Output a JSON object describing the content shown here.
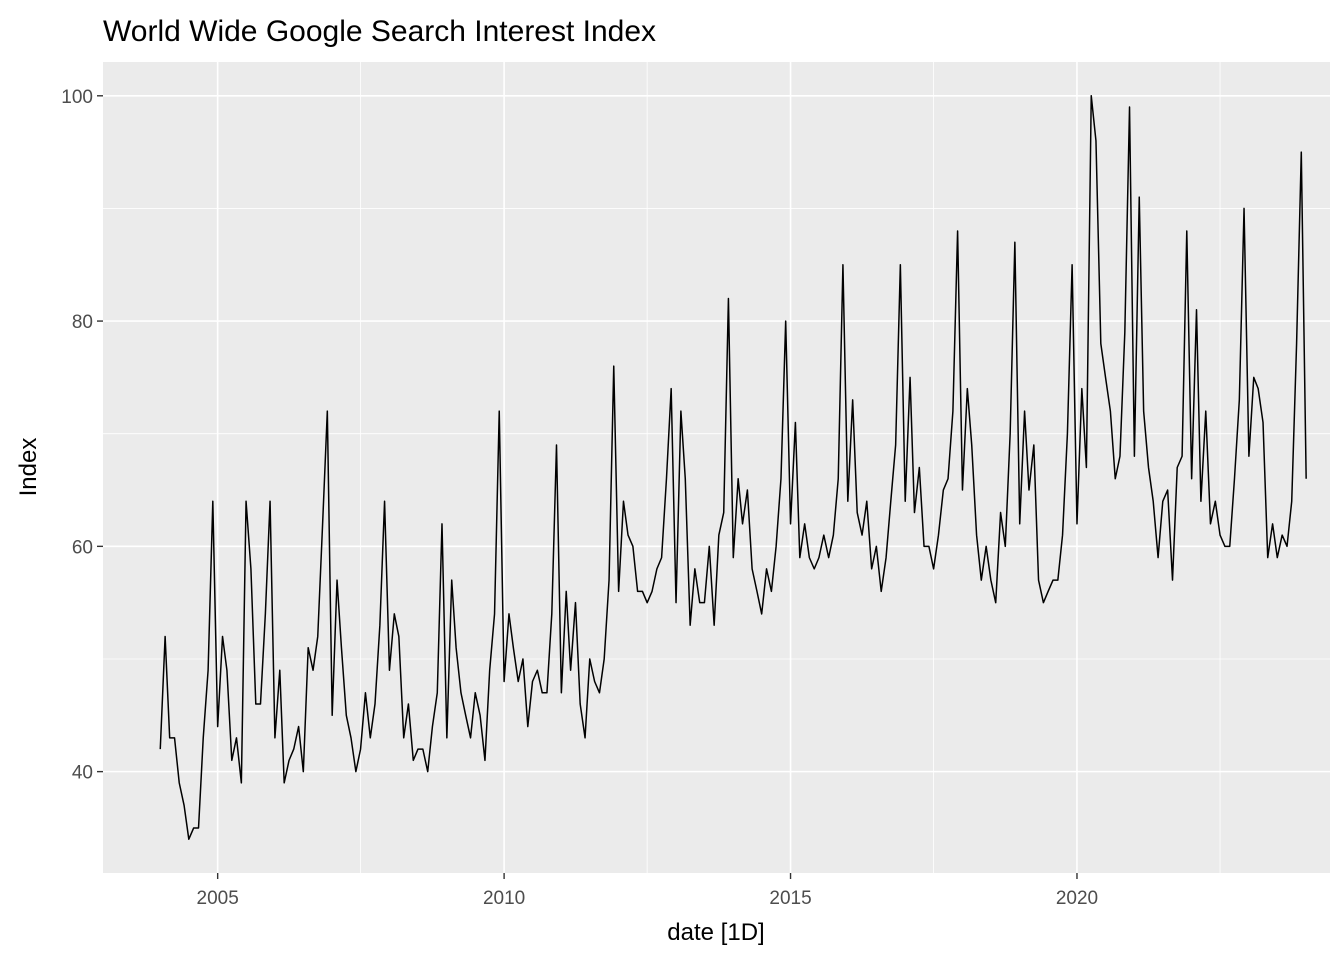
{
  "chart_data": {
    "type": "line",
    "title": "World Wide Google Search Interest Index",
    "xlabel": "date [1D]",
    "ylabel": "Index",
    "xlim": [
      "2003-01-01",
      "2024-06-01"
    ],
    "ylim": [
      31,
      103
    ],
    "x_ticks": [
      {
        "value": "2005-01-01",
        "label": "2005"
      },
      {
        "value": "2010-01-01",
        "label": "2010"
      },
      {
        "value": "2015-01-01",
        "label": "2015"
      },
      {
        "value": "2020-01-01",
        "label": "2020"
      }
    ],
    "x_minor_ticks": [
      "2007-07-01",
      "2012-07-01",
      "2017-07-01",
      "2022-07-01"
    ],
    "y_ticks": [
      40,
      60,
      80,
      100
    ],
    "y_minor_ticks": [
      50,
      70,
      90
    ],
    "grid": true,
    "background": "#ebebeb",
    "line_color": "#000000",
    "series": [
      {
        "points": [
          [
            "2004-01-01",
            42
          ],
          [
            "2004-02-01",
            52
          ],
          [
            "2004-03-01",
            43
          ],
          [
            "2004-04-01",
            43
          ],
          [
            "2004-05-01",
            39
          ],
          [
            "2004-06-01",
            37
          ],
          [
            "2004-07-01",
            34
          ],
          [
            "2004-08-01",
            35
          ],
          [
            "2004-09-01",
            35
          ],
          [
            "2004-10-01",
            43
          ],
          [
            "2004-11-01",
            49
          ],
          [
            "2004-12-01",
            64
          ],
          [
            "2005-01-01",
            44
          ],
          [
            "2005-02-01",
            52
          ],
          [
            "2005-03-01",
            49
          ],
          [
            "2005-04-01",
            41
          ],
          [
            "2005-05-01",
            43
          ],
          [
            "2005-06-01",
            39
          ],
          [
            "2005-07-01",
            64
          ],
          [
            "2005-08-01",
            58
          ],
          [
            "2005-09-01",
            46
          ],
          [
            "2005-10-01",
            46
          ],
          [
            "2005-11-01",
            54
          ],
          [
            "2005-12-01",
            64
          ],
          [
            "2006-01-01",
            43
          ],
          [
            "2006-02-01",
            49
          ],
          [
            "2006-03-01",
            39
          ],
          [
            "2006-04-01",
            41
          ],
          [
            "2006-05-01",
            42
          ],
          [
            "2006-06-01",
            44
          ],
          [
            "2006-07-01",
            40
          ],
          [
            "2006-08-01",
            51
          ],
          [
            "2006-09-01",
            49
          ],
          [
            "2006-10-01",
            52
          ],
          [
            "2006-11-01",
            62
          ],
          [
            "2006-12-01",
            72
          ],
          [
            "2007-01-01",
            45
          ],
          [
            "2007-02-01",
            57
          ],
          [
            "2007-03-01",
            51
          ],
          [
            "2007-04-01",
            45
          ],
          [
            "2007-05-01",
            43
          ],
          [
            "2007-06-01",
            40
          ],
          [
            "2007-07-01",
            42
          ],
          [
            "2007-08-01",
            47
          ],
          [
            "2007-09-01",
            43
          ],
          [
            "2007-10-01",
            46
          ],
          [
            "2007-11-01",
            53
          ],
          [
            "2007-12-01",
            64
          ],
          [
            "2008-01-01",
            49
          ],
          [
            "2008-02-01",
            54
          ],
          [
            "2008-03-01",
            52
          ],
          [
            "2008-04-01",
            43
          ],
          [
            "2008-05-01",
            46
          ],
          [
            "2008-06-01",
            41
          ],
          [
            "2008-07-01",
            42
          ],
          [
            "2008-08-01",
            42
          ],
          [
            "2008-09-01",
            40
          ],
          [
            "2008-10-01",
            44
          ],
          [
            "2008-11-01",
            47
          ],
          [
            "2008-12-01",
            62
          ],
          [
            "2009-01-01",
            43
          ],
          [
            "2009-02-01",
            57
          ],
          [
            "2009-03-01",
            51
          ],
          [
            "2009-04-01",
            47
          ],
          [
            "2009-05-01",
            45
          ],
          [
            "2009-06-01",
            43
          ],
          [
            "2009-07-01",
            47
          ],
          [
            "2009-08-01",
            45
          ],
          [
            "2009-09-01",
            41
          ],
          [
            "2009-10-01",
            49
          ],
          [
            "2009-11-01",
            54
          ],
          [
            "2009-12-01",
            72
          ],
          [
            "2010-01-01",
            48
          ],
          [
            "2010-02-01",
            54
          ],
          [
            "2010-03-01",
            51
          ],
          [
            "2010-04-01",
            48
          ],
          [
            "2010-05-01",
            50
          ],
          [
            "2010-06-01",
            44
          ],
          [
            "2010-07-01",
            48
          ],
          [
            "2010-08-01",
            49
          ],
          [
            "2010-09-01",
            47
          ],
          [
            "2010-10-01",
            47
          ],
          [
            "2010-11-01",
            54
          ],
          [
            "2010-12-01",
            69
          ],
          [
            "2011-01-01",
            47
          ],
          [
            "2011-02-01",
            56
          ],
          [
            "2011-03-01",
            49
          ],
          [
            "2011-04-01",
            55
          ],
          [
            "2011-05-01",
            46
          ],
          [
            "2011-06-01",
            43
          ],
          [
            "2011-07-01",
            50
          ],
          [
            "2011-08-01",
            48
          ],
          [
            "2011-09-01",
            47
          ],
          [
            "2011-10-01",
            50
          ],
          [
            "2011-11-01",
            57
          ],
          [
            "2011-12-01",
            76
          ],
          [
            "2012-01-01",
            56
          ],
          [
            "2012-02-01",
            64
          ],
          [
            "2012-03-01",
            61
          ],
          [
            "2012-04-01",
            60
          ],
          [
            "2012-05-01",
            56
          ],
          [
            "2012-06-01",
            56
          ],
          [
            "2012-07-01",
            55
          ],
          [
            "2012-08-01",
            56
          ],
          [
            "2012-09-01",
            58
          ],
          [
            "2012-10-01",
            59
          ],
          [
            "2012-11-01",
            66
          ],
          [
            "2012-12-01",
            74
          ],
          [
            "2013-01-01",
            55
          ],
          [
            "2013-02-01",
            72
          ],
          [
            "2013-03-01",
            66
          ],
          [
            "2013-04-01",
            53
          ],
          [
            "2013-05-01",
            58
          ],
          [
            "2013-06-01",
            55
          ],
          [
            "2013-07-01",
            55
          ],
          [
            "2013-08-01",
            60
          ],
          [
            "2013-09-01",
            53
          ],
          [
            "2013-10-01",
            61
          ],
          [
            "2013-11-01",
            63
          ],
          [
            "2013-12-01",
            82
          ],
          [
            "2014-01-01",
            59
          ],
          [
            "2014-02-01",
            66
          ],
          [
            "2014-03-01",
            62
          ],
          [
            "2014-04-01",
            65
          ],
          [
            "2014-05-01",
            58
          ],
          [
            "2014-06-01",
            56
          ],
          [
            "2014-07-01",
            54
          ],
          [
            "2014-08-01",
            58
          ],
          [
            "2014-09-01",
            56
          ],
          [
            "2014-10-01",
            60
          ],
          [
            "2014-11-01",
            66
          ],
          [
            "2014-12-01",
            80
          ],
          [
            "2015-01-01",
            62
          ],
          [
            "2015-02-01",
            71
          ],
          [
            "2015-03-01",
            59
          ],
          [
            "2015-04-01",
            62
          ],
          [
            "2015-05-01",
            59
          ],
          [
            "2015-06-01",
            58
          ],
          [
            "2015-07-01",
            59
          ],
          [
            "2015-08-01",
            61
          ],
          [
            "2015-09-01",
            59
          ],
          [
            "2015-10-01",
            61
          ],
          [
            "2015-11-01",
            66
          ],
          [
            "2015-12-01",
            85
          ],
          [
            "2016-01-01",
            64
          ],
          [
            "2016-02-01",
            73
          ],
          [
            "2016-03-01",
            63
          ],
          [
            "2016-04-01",
            61
          ],
          [
            "2016-05-01",
            64
          ],
          [
            "2016-06-01",
            58
          ],
          [
            "2016-07-01",
            60
          ],
          [
            "2016-08-01",
            56
          ],
          [
            "2016-09-01",
            59
          ],
          [
            "2016-10-01",
            64
          ],
          [
            "2016-11-01",
            69
          ],
          [
            "2016-12-01",
            85
          ],
          [
            "2017-01-01",
            64
          ],
          [
            "2017-02-01",
            75
          ],
          [
            "2017-03-01",
            63
          ],
          [
            "2017-04-01",
            67
          ],
          [
            "2017-05-01",
            60
          ],
          [
            "2017-06-01",
            60
          ],
          [
            "2017-07-01",
            58
          ],
          [
            "2017-08-01",
            61
          ],
          [
            "2017-09-01",
            65
          ],
          [
            "2017-10-01",
            66
          ],
          [
            "2017-11-01",
            72
          ],
          [
            "2017-12-01",
            88
          ],
          [
            "2018-01-01",
            65
          ],
          [
            "2018-02-01",
            74
          ],
          [
            "2018-03-01",
            69
          ],
          [
            "2018-04-01",
            61
          ],
          [
            "2018-05-01",
            57
          ],
          [
            "2018-06-01",
            60
          ],
          [
            "2018-07-01",
            57
          ],
          [
            "2018-08-01",
            55
          ],
          [
            "2018-09-01",
            63
          ],
          [
            "2018-10-01",
            60
          ],
          [
            "2018-11-01",
            70
          ],
          [
            "2018-12-01",
            87
          ],
          [
            "2019-01-01",
            62
          ],
          [
            "2019-02-01",
            72
          ],
          [
            "2019-03-01",
            65
          ],
          [
            "2019-04-01",
            69
          ],
          [
            "2019-05-01",
            57
          ],
          [
            "2019-06-01",
            55
          ],
          [
            "2019-07-01",
            56
          ],
          [
            "2019-08-01",
            57
          ],
          [
            "2019-09-01",
            57
          ],
          [
            "2019-10-01",
            61
          ],
          [
            "2019-11-01",
            70
          ],
          [
            "2019-12-01",
            85
          ],
          [
            "2020-01-01",
            62
          ],
          [
            "2020-02-01",
            74
          ],
          [
            "2020-03-01",
            67
          ],
          [
            "2020-04-01",
            100
          ],
          [
            "2020-05-01",
            96
          ],
          [
            "2020-06-01",
            78
          ],
          [
            "2020-07-01",
            75
          ],
          [
            "2020-08-01",
            72
          ],
          [
            "2020-09-01",
            66
          ],
          [
            "2020-10-01",
            68
          ],
          [
            "2020-11-01",
            79
          ],
          [
            "2020-12-01",
            99
          ],
          [
            "2021-01-01",
            68
          ],
          [
            "2021-02-01",
            91
          ],
          [
            "2021-03-01",
            72
          ],
          [
            "2021-04-01",
            67
          ],
          [
            "2021-05-01",
            64
          ],
          [
            "2021-06-01",
            59
          ],
          [
            "2021-07-01",
            64
          ],
          [
            "2021-08-01",
            65
          ],
          [
            "2021-09-01",
            57
          ],
          [
            "2021-10-01",
            67
          ],
          [
            "2021-11-01",
            68
          ],
          [
            "2021-12-01",
            88
          ],
          [
            "2022-01-01",
            66
          ],
          [
            "2022-02-01",
            81
          ],
          [
            "2022-03-01",
            64
          ],
          [
            "2022-04-01",
            72
          ],
          [
            "2022-05-01",
            62
          ],
          [
            "2022-06-01",
            64
          ],
          [
            "2022-07-01",
            61
          ],
          [
            "2022-08-01",
            60
          ],
          [
            "2022-09-01",
            60
          ],
          [
            "2022-10-01",
            66
          ],
          [
            "2022-11-01",
            73
          ],
          [
            "2022-12-01",
            90
          ],
          [
            "2023-01-01",
            68
          ],
          [
            "2023-02-01",
            75
          ],
          [
            "2023-03-01",
            74
          ],
          [
            "2023-04-01",
            71
          ],
          [
            "2023-05-01",
            59
          ],
          [
            "2023-06-01",
            62
          ],
          [
            "2023-07-01",
            59
          ],
          [
            "2023-08-01",
            61
          ],
          [
            "2023-09-01",
            60
          ],
          [
            "2023-10-01",
            64
          ],
          [
            "2023-11-01",
            78
          ],
          [
            "2023-12-01",
            95
          ],
          [
            "2024-01-01",
            66
          ]
        ]
      }
    ]
  }
}
